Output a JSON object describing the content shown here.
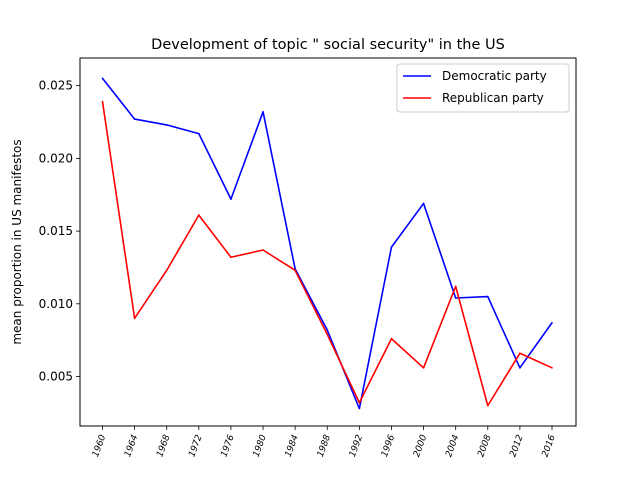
{
  "chart_data": {
    "type": "line",
    "title": "Development of topic \" social security\" in the US",
    "xlabel": "",
    "ylabel": "mean proportion in US manifestos",
    "categories": [
      "1960",
      "1964",
      "1968",
      "1972",
      "1976",
      "1980",
      "1984",
      "1988",
      "1992",
      "1996",
      "2000",
      "2004",
      "2008",
      "2012",
      "2016"
    ],
    "y_ticks": [
      "0.005",
      "0.010",
      "0.015",
      "0.020",
      "0.025"
    ],
    "ylim": [
      0.0016,
      0.0269
    ],
    "grid": false,
    "legend_position": "top-right",
    "series": [
      {
        "name": "Democratic party",
        "color": "#0000ff",
        "values": [
          0.0255,
          0.0227,
          0.0223,
          0.0217,
          0.0172,
          0.0232,
          0.0124,
          0.0082,
          0.0028,
          0.0139,
          0.0169,
          0.0104,
          0.0105,
          0.0056,
          0.0087
        ]
      },
      {
        "name": "Republican party",
        "color": "#ff0000",
        "values": [
          0.0239,
          0.009,
          0.0123,
          0.0161,
          0.0132,
          0.0137,
          0.0123,
          0.0079,
          0.0032,
          0.0076,
          0.0056,
          0.0112,
          0.003,
          0.0066,
          0.0056
        ]
      }
    ]
  }
}
